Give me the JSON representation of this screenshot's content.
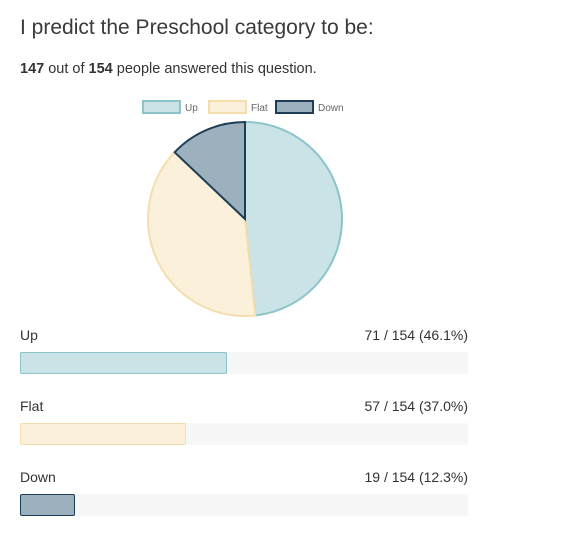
{
  "question": {
    "title": "I predict the Preschool category to be:",
    "answered": "147",
    "out_of_text": "out of",
    "total": "154",
    "tail_text": "people answered this question."
  },
  "colors": {
    "up_fill": "#c9e3e6",
    "up_stroke": "#8cc4ca",
    "flat_fill": "#fbf1db",
    "flat_stroke": "#f4deae",
    "down_fill": "#9db0be",
    "down_stroke": "#1d3e56"
  },
  "chart_data": {
    "type": "pie",
    "categories": [
      "Up",
      "Flat",
      "Down"
    ],
    "values": [
      71,
      57,
      19
    ],
    "legend_placement": "top-center"
  },
  "results": [
    {
      "label": "Up",
      "count_text": "71 / 154 (46.1%)",
      "fraction": 0.461
    },
    {
      "label": "Flat",
      "count_text": "57 / 154 (37.0%)",
      "fraction": 0.37
    },
    {
      "label": "Down",
      "count_text": "19 / 154 (12.3%)",
      "fraction": 0.123
    }
  ]
}
